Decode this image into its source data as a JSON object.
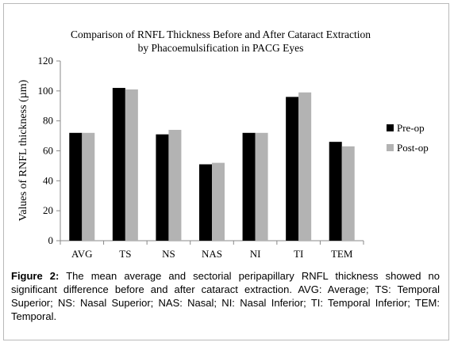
{
  "chart_data": {
    "type": "bar",
    "title_lines": [
      "Comparison of RNFL Thickness Before and After Cataract Extraction",
      "by Phacoemulsification in PACG Eyes"
    ],
    "xlabel": "",
    "ylabel": "Values of RNFL thickness (µm)",
    "ylim": [
      0,
      120
    ],
    "yticks": [
      0,
      20,
      40,
      60,
      80,
      100,
      120
    ],
    "categories": [
      "AVG",
      "TS",
      "NS",
      "NAS",
      "NI",
      "TI",
      "TEM"
    ],
    "series": [
      {
        "name": "Pre-op",
        "color": "#000000",
        "values": [
          72,
          102,
          71,
          51,
          72,
          96,
          66
        ]
      },
      {
        "name": "Post-op",
        "color": "#b3b3b3",
        "values": [
          72,
          101,
          74,
          52,
          72,
          99,
          63
        ]
      }
    ],
    "grid": false,
    "legend_position": "right"
  },
  "caption": {
    "label": "Figure 2:",
    "text": "The mean average and sectorial peripapillary RNFL thickness showed no significant difference before and after cataract extraction. AVG: Average; TS: Temporal Superior; NS: Nasal Superior; NAS: Nasal; NI: Nasal Inferior; TI: Temporal Inferior; TEM: Temporal."
  }
}
